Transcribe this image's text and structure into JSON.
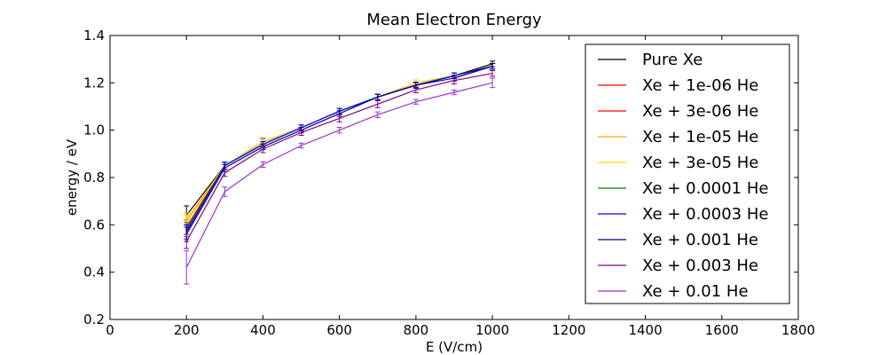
{
  "chart_data": {
    "type": "line",
    "title": "Mean Electron Energy",
    "xlabel": "E (V/cm)",
    "ylabel": "energy / eV",
    "xlim": [
      0,
      1800
    ],
    "ylim": [
      0.2,
      1.4
    ],
    "xticks": [
      0,
      200,
      400,
      600,
      800,
      1000,
      1200,
      1400,
      1600,
      1800
    ],
    "xtick_labels": [
      "0",
      "200",
      "400",
      "600",
      "800",
      "1000",
      "1200",
      "1400",
      "1600",
      "1800"
    ],
    "yticks": [
      0.2,
      0.4,
      0.6,
      0.8,
      1.0,
      1.2,
      1.4
    ],
    "ytick_labels": [
      "0.2",
      "0.4",
      "0.6",
      "0.8",
      "1.0",
      "1.2",
      "1.4"
    ],
    "grid": false,
    "legend_position": "top-right",
    "x": [
      200,
      300,
      400,
      500,
      600,
      700,
      800,
      900,
      1000
    ],
    "series": [
      {
        "name": "Pure Xe",
        "color": "#000000",
        "values": [
          0.64,
          0.85,
          0.95,
          1.01,
          1.08,
          1.14,
          1.19,
          1.23,
          1.28
        ],
        "errors": [
          0.04,
          0.015,
          0.015,
          0.012,
          0.012,
          0.012,
          0.012,
          0.012,
          0.012
        ]
      },
      {
        "name": "Xe + 1e-06 He",
        "color": "#ff0000",
        "values": [
          0.59,
          0.85,
          0.95,
          1.01,
          1.08,
          1.14,
          1.19,
          1.23,
          1.27
        ],
        "errors": [
          0.03,
          0.015,
          0.012,
          0.012,
          0.012,
          0.012,
          0.012,
          0.012,
          0.012
        ]
      },
      {
        "name": "Xe + 3e-06 He",
        "color": "#ff0000",
        "values": [
          0.59,
          0.85,
          0.95,
          1.01,
          1.08,
          1.14,
          1.19,
          1.23,
          1.27
        ],
        "errors": [
          0.03,
          0.015,
          0.012,
          0.012,
          0.012,
          0.012,
          0.012,
          0.012,
          0.012
        ]
      },
      {
        "name": "Xe + 1e-05 He",
        "color": "#ffa500",
        "values": [
          0.62,
          0.85,
          0.95,
          1.01,
          1.08,
          1.14,
          1.2,
          1.23,
          1.27
        ],
        "errors": [
          0.03,
          0.015,
          0.012,
          0.012,
          0.012,
          0.012,
          0.012,
          0.012,
          0.012
        ]
      },
      {
        "name": "Xe + 3e-05 He",
        "color": "#ffd700",
        "values": [
          0.61,
          0.85,
          0.95,
          1.01,
          1.08,
          1.14,
          1.2,
          1.23,
          1.27
        ],
        "errors": [
          0.03,
          0.015,
          0.012,
          0.012,
          0.012,
          0.012,
          0.012,
          0.012,
          0.012
        ]
      },
      {
        "name": "Xe + 0.0001 He",
        "color": "#008000",
        "values": [
          0.58,
          0.85,
          0.94,
          1.01,
          1.08,
          1.14,
          1.19,
          1.23,
          1.27
        ],
        "errors": [
          0.03,
          0.015,
          0.012,
          0.012,
          0.012,
          0.012,
          0.012,
          0.012,
          0.012
        ]
      },
      {
        "name": "Xe + 0.0003 He",
        "color": "#0000ff",
        "values": [
          0.57,
          0.85,
          0.94,
          1.01,
          1.08,
          1.14,
          1.19,
          1.23,
          1.27
        ],
        "errors": [
          0.03,
          0.015,
          0.012,
          0.012,
          0.012,
          0.012,
          0.012,
          0.012,
          0.012
        ]
      },
      {
        "name": "Xe + 0.001 He",
        "color": "#00008b",
        "values": [
          0.56,
          0.84,
          0.93,
          1.0,
          1.07,
          1.14,
          1.19,
          1.22,
          1.27
        ],
        "errors": [
          0.03,
          0.015,
          0.012,
          0.012,
          0.012,
          0.012,
          0.012,
          0.012,
          0.012
        ]
      },
      {
        "name": "Xe + 0.003 He",
        "color": "#800080",
        "values": [
          0.53,
          0.82,
          0.92,
          0.99,
          1.05,
          1.11,
          1.17,
          1.21,
          1.24
        ],
        "errors": [
          0.03,
          0.015,
          0.015,
          0.012,
          0.015,
          0.015,
          0.012,
          0.015,
          0.012
        ]
      },
      {
        "name": "Xe + 0.01 He",
        "color": "#9932cc",
        "values": [
          0.42,
          0.74,
          0.855,
          0.935,
          1.0,
          1.065,
          1.12,
          1.16,
          1.2
        ],
        "errors": [
          0.07,
          0.02,
          0.012,
          0.01,
          0.012,
          0.012,
          0.01,
          0.01,
          0.02
        ]
      }
    ]
  }
}
